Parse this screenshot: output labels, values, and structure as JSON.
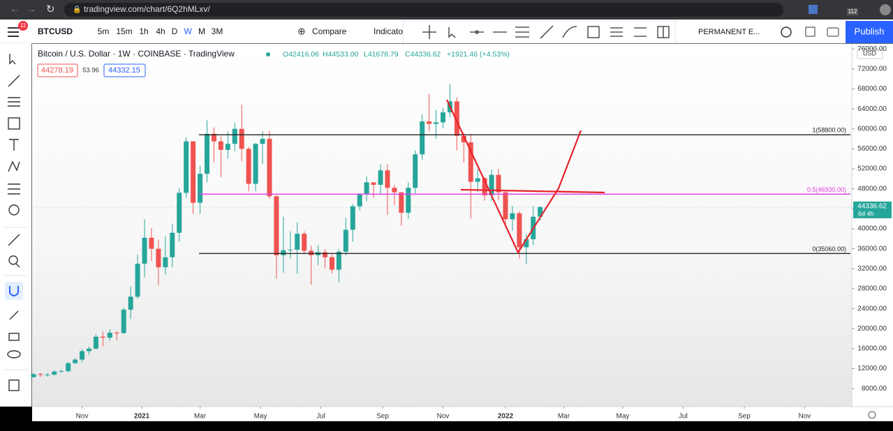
{
  "browser": {
    "url": "tradingview.com/chart/6Q2hMLxv/",
    "badge": "112"
  },
  "toolbar": {
    "menu_badge": "11",
    "symbol": "BTCUSD",
    "intervals": [
      "5m",
      "15m",
      "1h",
      "4h",
      "D",
      "W",
      "M",
      "3M"
    ],
    "compare": "Compare",
    "indicators": "Indicato",
    "layout_name": "PERMANENT E...",
    "publish": "Publish"
  },
  "legend": {
    "title": "Bitcoin / U.S. Dollar · 1W · COINBASE · TradingView",
    "open": "O42416.06",
    "high": "H44533.00",
    "low": "L41678.79",
    "close": "C44336.62",
    "change": "+1921.46 (+4.53%)",
    "bid": "44278.19",
    "spread": "53.96",
    "ask": "44332.15"
  },
  "chart_data": {
    "type": "candlestick",
    "currency": "USD",
    "up_color": "#26a69a",
    "down_color": "#ef5350",
    "open": [
      10300,
      10900,
      10750,
      10800,
      11400,
      11500,
      13100,
      13800,
      15500,
      16000,
      18400,
      18200,
      19200,
      19100,
      23800,
      26400,
      33000,
      38200,
      36000,
      32300,
      34300,
      39200,
      47200,
      57500,
      45200,
      51000,
      59000,
      57500,
      55800,
      57000,
      60000,
      56000,
      49000,
      57000,
      58000,
      46500,
      34700,
      35700,
      35800,
      39000,
      35600,
      34700,
      35300,
      34300,
      31800,
      35400,
      39800,
      44500,
      47000,
      49300,
      48800,
      51700,
      48200,
      47300,
      43200,
      48200,
      54900,
      61500,
      61000,
      61300,
      63300,
      65500,
      58600,
      57300,
      49400,
      50100,
      46700,
      50800,
      47300,
      41900,
      43100,
      36300,
      37900,
      42416.06
    ],
    "high": [
      11100,
      11200,
      11100,
      11700,
      11800,
      13300,
      14100,
      15900,
      16400,
      18900,
      19400,
      19900,
      19500,
      24200,
      28400,
      34800,
      41900,
      40100,
      37800,
      38500,
      40900,
      48200,
      58300,
      57500,
      52600,
      61700,
      60300,
      58500,
      59500,
      61200,
      64800,
      56400,
      57200,
      59500,
      59600,
      46700,
      42400,
      39500,
      41300,
      39500,
      36600,
      36700,
      35900,
      34800,
      35900,
      42200,
      44900,
      47100,
      50500,
      49300,
      52900,
      52900,
      48800,
      47300,
      49300,
      55700,
      62900,
      67000,
      63800,
      64200,
      69000,
      66300,
      59200,
      59000,
      52000,
      50400,
      51900,
      52000,
      47600,
      44500,
      43500,
      38900,
      44500,
      44533
    ],
    "low": [
      10200,
      10300,
      10400,
      10600,
      11200,
      11300,
      12900,
      13300,
      14800,
      15800,
      16500,
      17600,
      17700,
      19000,
      21900,
      26000,
      30300,
      33500,
      28700,
      30800,
      32300,
      37400,
      46200,
      43000,
      43000,
      49300,
      53300,
      50300,
      54000,
      55500,
      53500,
      47500,
      47500,
      53000,
      46000,
      30000,
      31200,
      34000,
      31000,
      34900,
      28800,
      32700,
      32100,
      31100,
      29300,
      34700,
      37400,
      43700,
      45500,
      46200,
      47000,
      42800,
      44700,
      40600,
      42000,
      47100,
      53800,
      59500,
      58000,
      60100,
      62300,
      55700,
      53300,
      42000,
      47300,
      45600,
      45600,
      45700,
      40600,
      39600,
      34000,
      32900,
      36700,
      41678.79
    ],
    "close": [
      10900,
      10750,
      10800,
      11400,
      11500,
      13100,
      13800,
      15500,
      16000,
      18400,
      18200,
      19200,
      19100,
      23800,
      26400,
      33000,
      38200,
      36000,
      32300,
      34300,
      39200,
      47200,
      57500,
      45200,
      51000,
      59000,
      57500,
      55800,
      57000,
      60000,
      56000,
      49000,
      57000,
      58000,
      46500,
      34700,
      35700,
      35800,
      39000,
      35600,
      34700,
      35300,
      34300,
      31800,
      35400,
      39800,
      44500,
      47000,
      49300,
      48800,
      51700,
      48200,
      47300,
      43200,
      48200,
      54900,
      61500,
      61000,
      61300,
      63300,
      65500,
      58600,
      57300,
      49400,
      50100,
      46700,
      50800,
      47300,
      41900,
      43100,
      36300,
      37900,
      42400,
      44336.62
    ],
    "xlim": [
      -0.3,
      117.9
    ],
    "xticks": [
      {
        "value": 7,
        "label": "Nov"
      },
      {
        "value": 15.6,
        "label": "2021"
      },
      {
        "value": 24,
        "label": "Mar"
      },
      {
        "value": 32.7,
        "label": "May"
      },
      {
        "value": 41.4,
        "label": "Jul"
      },
      {
        "value": 50.3,
        "label": "Sep"
      },
      {
        "value": 59,
        "label": "Nov"
      },
      {
        "value": 68,
        "label": "2022"
      },
      {
        "value": 76.4,
        "label": "Mar"
      },
      {
        "value": 84.9,
        "label": "May"
      },
      {
        "value": 93.6,
        "label": "Jul"
      },
      {
        "value": 102.4,
        "label": "Sep"
      },
      {
        "value": 111.1,
        "label": "Nov"
      }
    ],
    "ylim": [
      4400,
      77000
    ],
    "yticks": [
      {
        "value": 76000,
        "label": "76000.00"
      },
      {
        "value": 72000,
        "label": "72000.00"
      },
      {
        "value": 68000,
        "label": "68000.00"
      },
      {
        "value": 64000,
        "label": "64000.00"
      },
      {
        "value": 60000,
        "label": "60000.00"
      },
      {
        "value": 56000,
        "label": "56000.00"
      },
      {
        "value": 52000,
        "label": "52000.00"
      },
      {
        "value": 48000,
        "label": "48000.00"
      },
      {
        "value": 44000,
        "label": "44000.00"
      },
      {
        "value": 40000,
        "label": "40000.00"
      },
      {
        "value": 36000,
        "label": "36000.00"
      },
      {
        "value": 32000,
        "label": "32000.00"
      },
      {
        "value": 28000,
        "label": "28000.00"
      },
      {
        "value": 24000,
        "label": "24000.00"
      },
      {
        "value": 20000,
        "label": "20000.00"
      },
      {
        "value": 16000,
        "label": "16000.00"
      },
      {
        "value": 12000,
        "label": "12000.00"
      },
      {
        "value": 8000,
        "label": "8000.00"
      }
    ],
    "levels": [
      {
        "value": 58800,
        "label": "1(58800.00)",
        "color": "#222222"
      },
      {
        "value": 46930,
        "label": "0.5(46930.00)",
        "color": "#e040e0"
      },
      {
        "value": 35060,
        "label": "0(35060.00)",
        "color": "#222222"
      }
    ],
    "last_price": 44336.62,
    "countdown": "6d 4h"
  }
}
